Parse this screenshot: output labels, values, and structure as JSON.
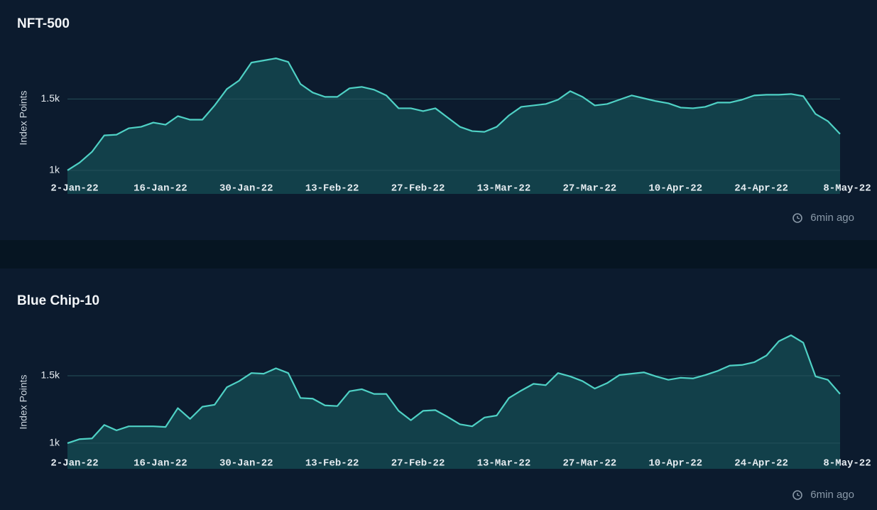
{
  "chart_data": [
    {
      "type": "area",
      "title": "NFT-500",
      "y_label": "Index Points",
      "updated": "6min ago",
      "x": [
        0,
        2,
        4,
        6,
        8,
        10,
        12,
        14,
        16,
        18,
        20,
        22,
        24,
        26,
        28,
        30,
        32,
        34,
        36,
        38,
        40,
        42,
        44,
        46,
        48,
        50,
        52,
        54,
        56,
        58,
        60,
        62,
        64,
        66,
        68,
        70,
        72,
        74,
        76,
        78,
        80,
        82,
        84,
        86,
        88,
        90,
        92,
        94,
        96,
        98,
        100,
        102,
        104,
        106,
        108,
        110,
        112,
        114,
        116,
        118,
        120,
        122,
        124,
        126
      ],
      "values": [
        1000,
        1055,
        1130,
        1245,
        1250,
        1295,
        1305,
        1335,
        1320,
        1380,
        1355,
        1355,
        1455,
        1570,
        1630,
        1755,
        1770,
        1785,
        1760,
        1605,
        1545,
        1515,
        1515,
        1575,
        1585,
        1565,
        1525,
        1435,
        1435,
        1415,
        1435,
        1370,
        1305,
        1275,
        1270,
        1305,
        1385,
        1445,
        1455,
        1465,
        1495,
        1555,
        1515,
        1455,
        1465,
        1495,
        1525,
        1505,
        1485,
        1470,
        1440,
        1435,
        1445,
        1475,
        1475,
        1495,
        1525,
        1530,
        1530,
        1535,
        1520,
        1395,
        1345,
        1255
      ],
      "color": "#4fd1c5",
      "fill": "#12404a",
      "xlim": [
        0,
        126
      ],
      "xticks": [
        {
          "value": 0,
          "label": "2-Jan-22"
        },
        {
          "value": 14,
          "label": "16-Jan-22"
        },
        {
          "value": 28,
          "label": "30-Jan-22"
        },
        {
          "value": 42,
          "label": "13-Feb-22"
        },
        {
          "value": 56,
          "label": "27-Feb-22"
        },
        {
          "value": 70,
          "label": "13-Mar-22"
        },
        {
          "value": 84,
          "label": "27-Mar-22"
        },
        {
          "value": 98,
          "label": "10-Apr-22"
        },
        {
          "value": 112,
          "label": "24-Apr-22"
        },
        {
          "value": 126,
          "label": "8-May-22"
        }
      ],
      "ylim": [
        835,
        1900
      ],
      "yticks": [
        {
          "value": 1000,
          "label": "1k"
        },
        {
          "value": 1500,
          "label": "1.5k"
        }
      ],
      "grid": true
    },
    {
      "type": "area",
      "title": "Blue Chip-10",
      "y_label": "Index Points",
      "updated": "6min ago",
      "x": [
        0,
        2,
        4,
        6,
        8,
        10,
        12,
        14,
        16,
        18,
        20,
        22,
        24,
        26,
        28,
        30,
        32,
        34,
        36,
        38,
        40,
        42,
        44,
        46,
        48,
        50,
        52,
        54,
        56,
        58,
        60,
        62,
        64,
        66,
        68,
        70,
        72,
        74,
        76,
        78,
        80,
        82,
        84,
        86,
        88,
        90,
        92,
        94,
        96,
        98,
        100,
        102,
        104,
        106,
        108,
        110,
        112,
        114,
        116,
        118,
        120,
        122,
        124,
        126
      ],
      "values": [
        1000,
        1030,
        1035,
        1135,
        1095,
        1125,
        1125,
        1125,
        1120,
        1260,
        1180,
        1270,
        1285,
        1415,
        1460,
        1520,
        1515,
        1555,
        1520,
        1335,
        1330,
        1280,
        1275,
        1385,
        1400,
        1365,
        1365,
        1240,
        1170,
        1240,
        1245,
        1195,
        1140,
        1125,
        1190,
        1205,
        1335,
        1390,
        1440,
        1430,
        1520,
        1495,
        1460,
        1405,
        1445,
        1505,
        1515,
        1525,
        1495,
        1470,
        1485,
        1480,
        1505,
        1535,
        1575,
        1580,
        1600,
        1650,
        1755,
        1800,
        1745,
        1495,
        1470,
        1365
      ],
      "color": "#4fd1c5",
      "fill": "#12404a",
      "xlim": [
        0,
        126
      ],
      "xticks": [
        {
          "value": 0,
          "label": "2-Jan-22"
        },
        {
          "value": 14,
          "label": "16-Jan-22"
        },
        {
          "value": 28,
          "label": "30-Jan-22"
        },
        {
          "value": 42,
          "label": "13-Feb-22"
        },
        {
          "value": 56,
          "label": "27-Feb-22"
        },
        {
          "value": 70,
          "label": "13-Mar-22"
        },
        {
          "value": 84,
          "label": "27-Mar-22"
        },
        {
          "value": 98,
          "label": "10-Apr-22"
        },
        {
          "value": 112,
          "label": "24-Apr-22"
        },
        {
          "value": 126,
          "label": "8-May-22"
        }
      ],
      "ylim": [
        810,
        1800
      ],
      "yticks": [
        {
          "value": 1000,
          "label": "1k"
        },
        {
          "value": 1500,
          "label": "1.5k"
        }
      ],
      "grid": true
    }
  ]
}
